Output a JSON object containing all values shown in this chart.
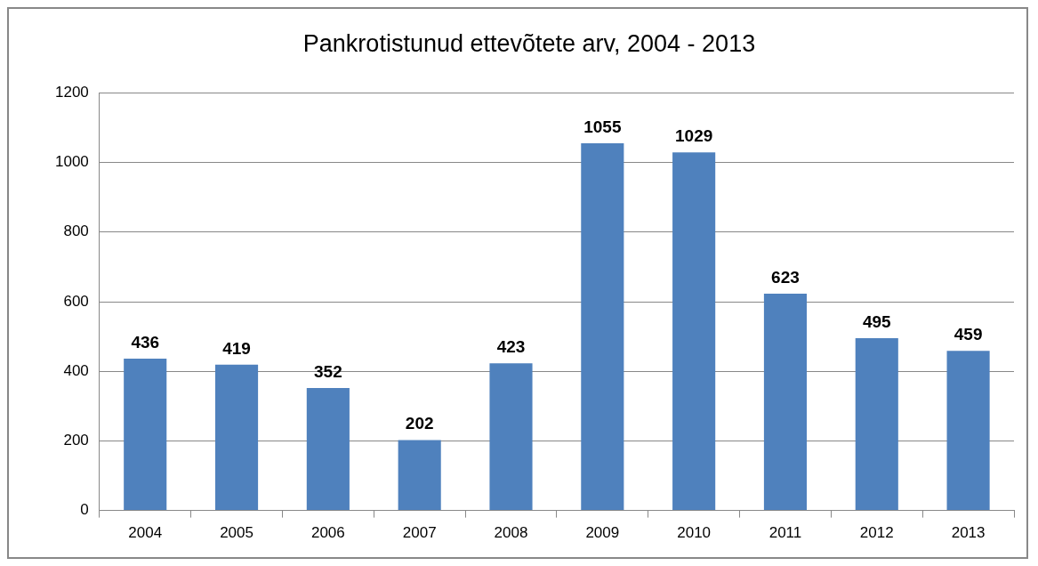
{
  "chart_data": {
    "type": "bar",
    "title": "Pankrotistunud ettevõtete arv, 2004 - 2013",
    "categories": [
      "2004",
      "2005",
      "2006",
      "2007",
      "2008",
      "2009",
      "2010",
      "2011",
      "2012",
      "2013"
    ],
    "values": [
      436,
      419,
      352,
      202,
      423,
      1055,
      1029,
      623,
      495,
      459
    ],
    "color": "#4f81bd",
    "ylim": [
      0,
      1200
    ],
    "yticks": [
      0,
      200,
      400,
      600,
      800,
      1000,
      1200
    ],
    "grid": "y",
    "data_labels": true,
    "legend": false
  }
}
